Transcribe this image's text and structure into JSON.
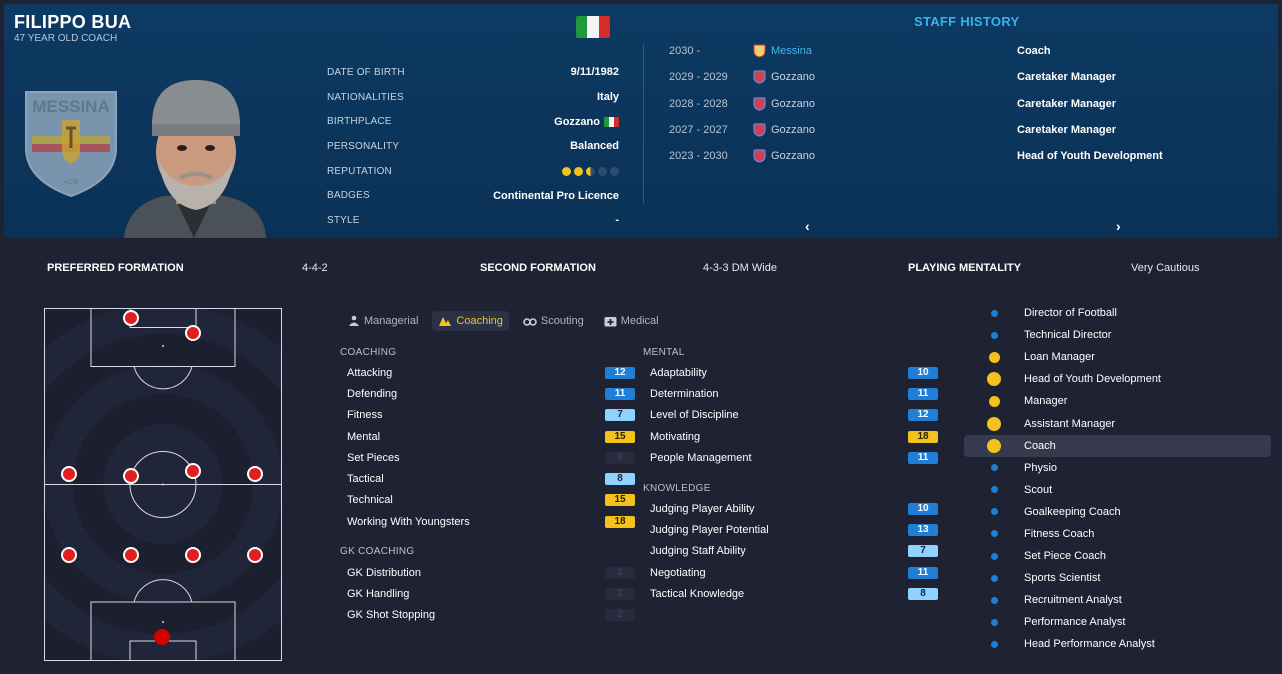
{
  "profile": {
    "name": "FILIPPO BUA",
    "subtitle": "47 YEAR OLD COACH",
    "crest_text": "MESSINA",
    "crest_small": "ACR"
  },
  "info": [
    {
      "label": "DATE OF BIRTH",
      "value": "9/11/1982"
    },
    {
      "label": "NATIONALITIES",
      "value": "Italy"
    },
    {
      "label": "BIRTHPLACE",
      "value": "Gozzano"
    },
    {
      "label": "PERSONALITY",
      "value": "Balanced"
    },
    {
      "label": "REPUTATION",
      "value": ""
    },
    {
      "label": "BADGES",
      "value": "Continental Pro Licence"
    },
    {
      "label": "STYLE",
      "value": "-"
    }
  ],
  "reputation_stars": 2.5,
  "staff_history": {
    "title": "STAFF HISTORY",
    "rows": [
      {
        "years": "2030 -",
        "club": "Messina",
        "role": "Coach",
        "current": true
      },
      {
        "years": "2029 - 2029",
        "club": "Gozzano",
        "role": "Caretaker Manager"
      },
      {
        "years": "2028 - 2028",
        "club": "Gozzano",
        "role": "Caretaker Manager"
      },
      {
        "years": "2027 - 2027",
        "club": "Gozzano",
        "role": "Caretaker Manager"
      },
      {
        "years": "2023 - 2030",
        "club": "Gozzano",
        "role": "Head of Youth Development"
      }
    ],
    "prev": "‹",
    "next": "›"
  },
  "formation": {
    "preferred_label": "PREFERRED FORMATION",
    "preferred_value": "4-4-2",
    "second_label": "SECOND FORMATION",
    "second_value": "4-3-3 DM Wide",
    "mentality_label": "PLAYING MENTALITY",
    "mentality_value": "Very Cautious"
  },
  "tabs": [
    "Managerial",
    "Coaching",
    "Scouting",
    "Medical"
  ],
  "coaching": {
    "title": "COACHING",
    "items": [
      {
        "name": "Attacking",
        "value": "12"
      },
      {
        "name": "Defending",
        "value": "11"
      },
      {
        "name": "Fitness",
        "value": "7"
      },
      {
        "name": "Mental",
        "value": "15"
      },
      {
        "name": "Set Pieces",
        "value": "5"
      },
      {
        "name": "Tactical",
        "value": "8"
      },
      {
        "name": "Technical",
        "value": "15"
      },
      {
        "name": "Working With Youngsters",
        "value": "18"
      }
    ]
  },
  "gk_coaching": {
    "title": "GK COACHING",
    "items": [
      {
        "name": "GK Distribution",
        "value": "2"
      },
      {
        "name": "GK Handling",
        "value": "2"
      },
      {
        "name": "GK Shot Stopping",
        "value": "2"
      }
    ]
  },
  "mental": {
    "title": "MENTAL",
    "items": [
      {
        "name": "Adaptability",
        "value": "10"
      },
      {
        "name": "Determination",
        "value": "11"
      },
      {
        "name": "Level of Discipline",
        "value": "12"
      },
      {
        "name": "Motivating",
        "value": "18"
      },
      {
        "name": "People Management",
        "value": "11"
      }
    ]
  },
  "knowledge": {
    "title": "KNOWLEDGE",
    "items": [
      {
        "name": "Judging Player Ability",
        "value": "10"
      },
      {
        "name": "Judging Player Potential",
        "value": "13"
      },
      {
        "name": "Judging Staff Ability",
        "value": "7"
      },
      {
        "name": "Negotiating",
        "value": "11"
      },
      {
        "name": "Tactical Knowledge",
        "value": "8"
      }
    ]
  },
  "roles": [
    {
      "name": "Director of Football",
      "level": "low"
    },
    {
      "name": "Technical Director",
      "level": "low"
    },
    {
      "name": "Loan Manager",
      "level": "mid"
    },
    {
      "name": "Head of Youth Development",
      "level": "high"
    },
    {
      "name": "Manager",
      "level": "mid"
    },
    {
      "name": "Assistant Manager",
      "level": "high"
    },
    {
      "name": "Coach",
      "level": "high",
      "selected": true
    },
    {
      "name": "Physio",
      "level": "low"
    },
    {
      "name": "Scout",
      "level": "low"
    },
    {
      "name": "Goalkeeping Coach",
      "level": "low"
    },
    {
      "name": "Fitness Coach",
      "level": "low"
    },
    {
      "name": "Set Piece Coach",
      "level": "low"
    },
    {
      "name": "Sports Scientist",
      "level": "low"
    },
    {
      "name": "Recruitment Analyst",
      "level": "low"
    },
    {
      "name": "Performance Analyst",
      "level": "low"
    },
    {
      "name": "Head Performance Analyst",
      "level": "low"
    }
  ],
  "colors": {
    "accent": "#33b4f0",
    "yellow": "#f4c21c",
    "blue_badge": "#1f7fd6",
    "light_badge": "#8fd2ff",
    "player_marker": "#e02020"
  }
}
